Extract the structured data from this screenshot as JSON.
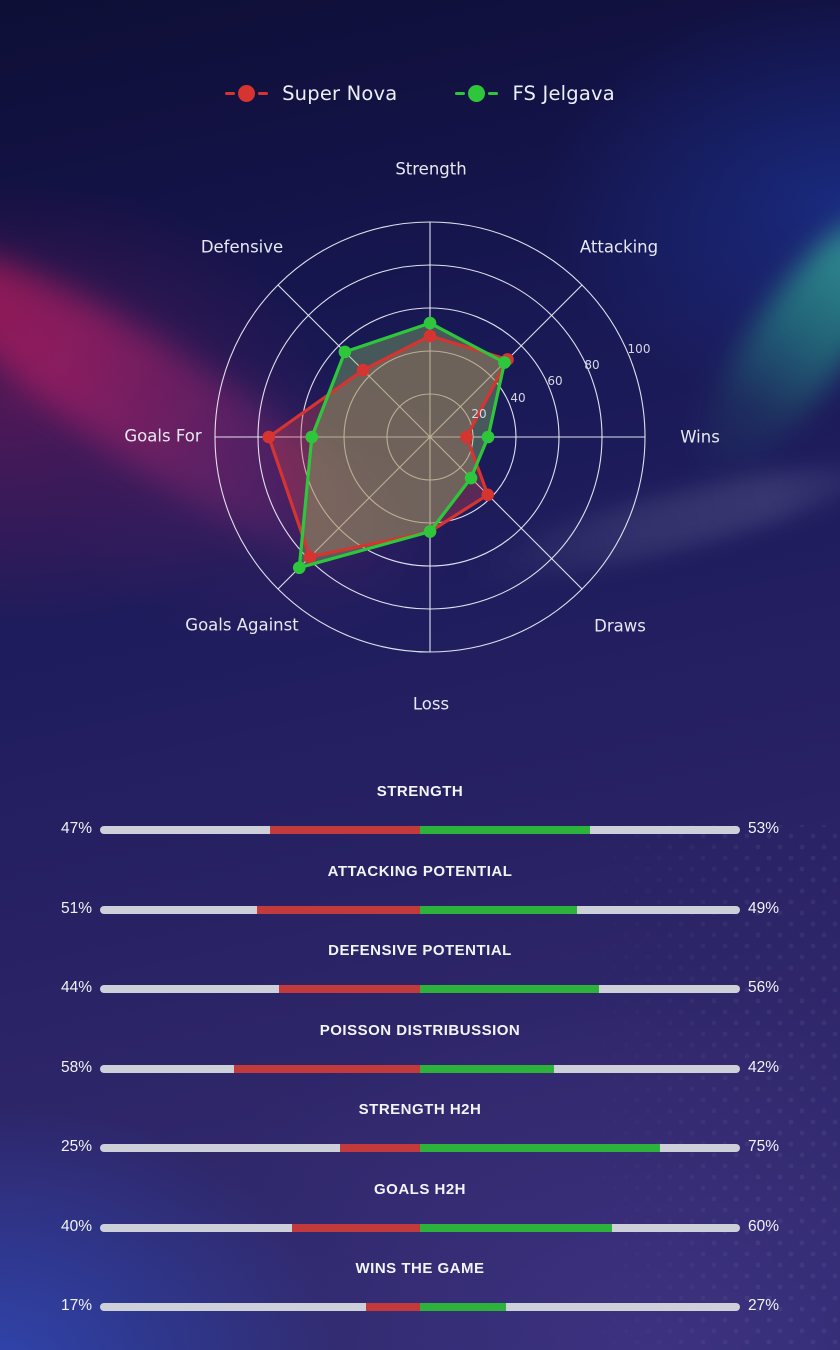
{
  "legend": {
    "items": [
      {
        "label": "Super Nova",
        "color": "#d53431"
      },
      {
        "label": "FS Jelgava",
        "color": "#2ec73c"
      }
    ]
  },
  "chart_data": {
    "type": "radar",
    "categories": [
      "Strength",
      "Attacking",
      "Wins",
      "Draws",
      "Loss",
      "Goals Against",
      "Goals For",
      "Defensive"
    ],
    "angles_deg": [
      90,
      45,
      0,
      -45,
      -90,
      -135,
      180,
      135
    ],
    "rticks": [
      20,
      40,
      60,
      80,
      100
    ],
    "rmax": 100,
    "grid": "on",
    "series": [
      {
        "name": "Super Nova",
        "color": "#d53431",
        "fill": "rgba(205,70,80,0.35)",
        "values": [
          47,
          51,
          17,
          38,
          44,
          79,
          75,
          44
        ]
      },
      {
        "name": "FS Jelgava",
        "color": "#2ec73c",
        "fill": "rgba(140,185,100,0.40)",
        "values": [
          53,
          49,
          27,
          27,
          44,
          86,
          55,
          56
        ]
      }
    ]
  },
  "bars": {
    "left_team": "Super Nova",
    "right_team": "FS Jelgava",
    "colors": {
      "left": "#c23a3c",
      "right": "#2db33c",
      "track": "#cdd0d8"
    },
    "rows": [
      {
        "title": "STRENGTH",
        "left_label": "47%",
        "right_label": "53%",
        "left_value": 47,
        "right_value": 53
      },
      {
        "title": "ATTACKING POTENTIAL",
        "left_label": "51%",
        "right_label": "49%",
        "left_value": 51,
        "right_value": 49
      },
      {
        "title": "DEFENSIVE POTENTIAL",
        "left_label": "44%",
        "right_label": "56%",
        "left_value": 44,
        "right_value": 56
      },
      {
        "title": "POISSON DISTRIBUSSION",
        "left_label": "58%",
        "right_label": "42%",
        "left_value": 58,
        "right_value": 42
      },
      {
        "title": "STRENGTH H2H",
        "left_label": "25%",
        "right_label": "75%",
        "left_value": 25,
        "right_value": 75
      },
      {
        "title": "GOALS H2H",
        "left_label": "40%",
        "right_label": "60%",
        "left_value": 40,
        "right_value": 60
      },
      {
        "title": "WINS THE GAME",
        "left_label": "17%",
        "right_label": "27%",
        "left_value": 17,
        "right_value": 27
      }
    ]
  }
}
